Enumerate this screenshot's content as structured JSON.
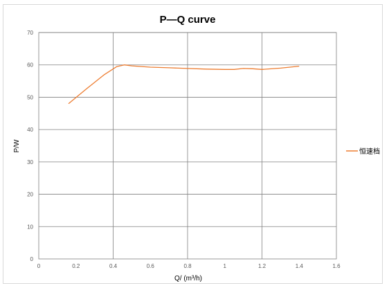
{
  "chart_data": {
    "type": "line",
    "title": "P—Q curve",
    "xlabel": "Q/ (m³/h)",
    "ylabel": "P/W",
    "xlim": [
      0,
      1.6
    ],
    "ylim": [
      0,
      70
    ],
    "x_ticks": [
      "0",
      "0.2",
      "0.4",
      "0.6",
      "0.8",
      "1",
      "1.2",
      "1.4",
      "1.6"
    ],
    "y_ticks": [
      "0",
      "10",
      "20",
      "30",
      "40",
      "50",
      "60",
      "70"
    ],
    "grid": true,
    "legend_position": "right",
    "colors": {
      "series": "#ed7d31",
      "grid": "#808080",
      "axis": "#808080"
    },
    "series": [
      {
        "name": "恒速档",
        "x": [
          0.16,
          0.25,
          0.35,
          0.42,
          0.46,
          0.5,
          0.6,
          0.7,
          0.8,
          0.9,
          1.0,
          1.05,
          1.1,
          1.15,
          1.2,
          1.3,
          1.4
        ],
        "y": [
          48,
          52.3,
          56.9,
          59.5,
          60,
          59.7,
          59.3,
          59.1,
          58.9,
          58.7,
          58.6,
          58.6,
          58.9,
          58.8,
          58.6,
          59.0,
          59.6
        ]
      }
    ]
  }
}
